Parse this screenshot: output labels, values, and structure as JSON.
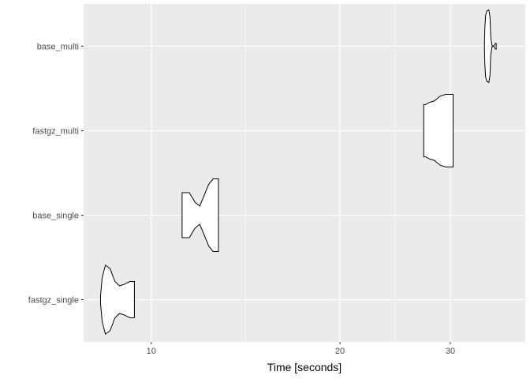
{
  "chart_data": {
    "type": "violin",
    "orientation": "horizontal",
    "xlabel": "Time [seconds]",
    "ylabel": "",
    "x_scale": "log",
    "xlim": [
      7.8,
      39.5
    ],
    "x_ticks": [
      10,
      20,
      30
    ],
    "x_minor_ticks": [
      14.14,
      24.49
    ],
    "grid": true,
    "legend": "none",
    "colors": {
      "panel": "#ebebeb",
      "grid": "#ffffff",
      "fill": "#ffffff",
      "outline": "#000000",
      "text": "#4d4d4d"
    },
    "categories": [
      "fastgz_single",
      "base_single",
      "fastgz_multi",
      "base_multi"
    ],
    "series": [
      {
        "category": "fastgz_single",
        "min": 8.3,
        "max": 9.4,
        "profile": [
          [
            8.3,
            0.1
          ],
          [
            8.35,
            0.6
          ],
          [
            8.45,
            0.95
          ],
          [
            8.6,
            0.85
          ],
          [
            8.75,
            0.5
          ],
          [
            8.9,
            0.38
          ],
          [
            9.05,
            0.42
          ],
          [
            9.25,
            0.5
          ],
          [
            9.4,
            0.5
          ]
        ]
      },
      {
        "category": "base_single",
        "min": 11.2,
        "max": 12.8,
        "profile": [
          [
            11.2,
            0.62
          ],
          [
            11.5,
            0.62
          ],
          [
            11.75,
            0.35
          ],
          [
            11.95,
            0.25
          ],
          [
            12.15,
            0.55
          ],
          [
            12.35,
            0.85
          ],
          [
            12.55,
            1.0
          ],
          [
            12.8,
            1.0
          ]
        ]
      },
      {
        "category": "fastgz_multi",
        "min": 27.2,
        "max": 30.3,
        "profile": [
          [
            27.2,
            0.72
          ],
          [
            27.4,
            0.72
          ],
          [
            27.8,
            0.78
          ],
          [
            28.3,
            0.82
          ],
          [
            28.9,
            0.95
          ],
          [
            29.5,
            1.0
          ],
          [
            30.3,
            1.0
          ]
        ]
      },
      {
        "category": "base_multi",
        "min": 34.0,
        "max": 35.5,
        "profile": [
          [
            34.0,
            0.05
          ],
          [
            34.05,
            0.5
          ],
          [
            34.15,
            0.85
          ],
          [
            34.3,
            0.97
          ],
          [
            34.55,
            1.0
          ],
          [
            34.7,
            0.8
          ],
          [
            34.8,
            0.25
          ],
          [
            34.95,
            0.02
          ],
          [
            35.1,
            0.0
          ],
          [
            35.25,
            0.02
          ],
          [
            35.4,
            0.08
          ],
          [
            35.5,
            0.08
          ]
        ]
      }
    ]
  }
}
